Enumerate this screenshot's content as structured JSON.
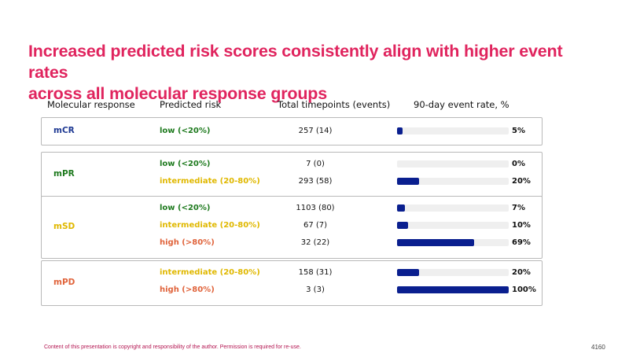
{
  "title_line1": "Increased predicted risk scores consistently align with higher event rates",
  "title_line2": "across all molecular response groups",
  "headers": {
    "response": "Molecular response",
    "risk": "Predicted risk",
    "timepoints": "Total timepoints (events)",
    "rate": "90-day event rate, %"
  },
  "footer": "Content of this presentation is copyright and responsibility of the author. Permission is required for re-use.",
  "page_number": "4160",
  "colors": {
    "title": "#e0245e",
    "bar": "#0a1f8f",
    "track": "#efefef",
    "mCR": "#1f3a93",
    "mPR": "#1e7a1e",
    "mSD": "#e0b800",
    "mPD": "#e0643c",
    "low": "#1e7a1e",
    "intermediate": "#e0b800",
    "high": "#e0643c"
  },
  "chart_data": {
    "type": "bar",
    "orientation": "horizontal",
    "title": "Increased predicted risk scores consistently align with higher event rates across all molecular response groups",
    "value_label": "90-day event rate, %",
    "xlim": [
      0,
      100
    ],
    "groups": [
      {
        "response": "mCR",
        "rows": [
          {
            "risk": "low (<20%)",
            "risk_level": "low",
            "timepoints": "257 (14)",
            "rate": 5,
            "rate_label": "5%"
          }
        ]
      },
      {
        "response": "mPR",
        "rows": [
          {
            "risk": "low (<20%)",
            "risk_level": "low",
            "timepoints": "7 (0)",
            "rate": 0,
            "rate_label": "0%"
          },
          {
            "risk": "intermediate (20-80%)",
            "risk_level": "intermediate",
            "timepoints": "293 (58)",
            "rate": 20,
            "rate_label": "20%"
          }
        ]
      },
      {
        "response": "mSD",
        "rows": [
          {
            "risk": "low (<20%)",
            "risk_level": "low",
            "timepoints": "1103 (80)",
            "rate": 7,
            "rate_label": "7%"
          },
          {
            "risk": "intermediate (20-80%)",
            "risk_level": "intermediate",
            "timepoints": "67 (7)",
            "rate": 10,
            "rate_label": "10%"
          },
          {
            "risk": "high (>80%)",
            "risk_level": "high",
            "timepoints": "32 (22)",
            "rate": 69,
            "rate_label": "69%"
          }
        ]
      },
      {
        "response": "mPD",
        "rows": [
          {
            "risk": "intermediate (20-80%)",
            "risk_level": "intermediate",
            "timepoints": "158 (31)",
            "rate": 20,
            "rate_label": "20%"
          },
          {
            "risk": "high (>80%)",
            "risk_level": "high",
            "timepoints": "3 (3)",
            "rate": 100,
            "rate_label": "100%"
          }
        ]
      }
    ]
  }
}
